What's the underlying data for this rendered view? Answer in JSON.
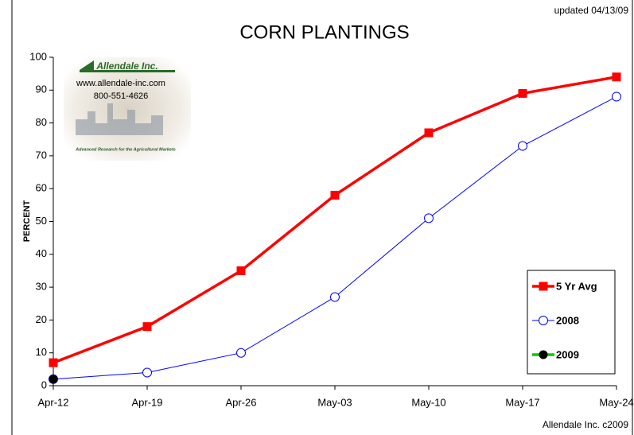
{
  "chart_data": {
    "type": "line",
    "title": "CORN PLANTINGS",
    "updated": "updated 04/13/09",
    "credit": "Allendale Inc. c2009",
    "y_label": "PERCENT",
    "logo": {
      "name": "Allendale Inc.",
      "url": "www.allendale-inc.com",
      "phone": "800-551-4626",
      "tagline": "Advanced Research for the Agricultural Markets"
    },
    "categories": [
      "Apr-12",
      "Apr-19",
      "Apr-26",
      "May-03",
      "May-10",
      "May-17",
      "May-24"
    ],
    "series": [
      {
        "name": "5 Yr Avg",
        "color": "#ff0000",
        "marker": "square",
        "values": [
          7,
          18,
          35,
          58,
          77,
          89,
          94
        ]
      },
      {
        "name": "2008",
        "color": "#0000ff",
        "marker": "open-circle",
        "values": [
          2,
          4,
          10,
          27,
          51,
          73,
          88
        ]
      },
      {
        "name": "2009",
        "color": "#00cc00",
        "marker": "black-circle",
        "values": [
          2,
          null,
          null,
          null,
          null,
          null,
          null
        ]
      }
    ],
    "ylim": [
      0,
      100
    ],
    "yticks": [
      0,
      10,
      20,
      30,
      40,
      50,
      60,
      70,
      80,
      90,
      100
    ],
    "legend": "lower-right",
    "grid": false
  }
}
